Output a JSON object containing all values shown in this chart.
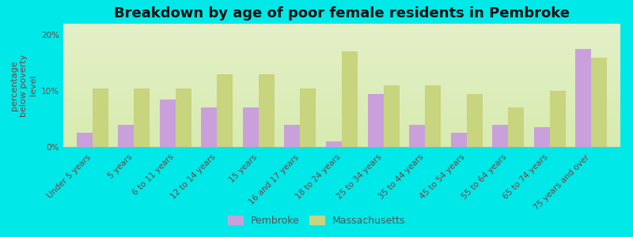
{
  "title": "Breakdown by age of poor female residents in Pembroke",
  "categories": [
    "Under 5 years",
    "5 years",
    "6 to 11 years",
    "12 to 14 years",
    "15 years",
    "16 and 17 years",
    "18 to 24 years",
    "25 to 34 years",
    "35 to 44 years",
    "45 to 54 years",
    "55 to 64 years",
    "65 to 74 years",
    "75 years and over"
  ],
  "pembroke": [
    2.5,
    4.0,
    8.5,
    7.0,
    7.0,
    4.0,
    1.0,
    9.5,
    4.0,
    2.5,
    4.0,
    3.5,
    17.5
  ],
  "massachusetts": [
    10.5,
    10.5,
    10.5,
    13.0,
    13.0,
    10.5,
    17.0,
    11.0,
    11.0,
    9.5,
    7.0,
    10.0,
    16.0
  ],
  "pembroke_color": "#c9a0dc",
  "massachusetts_color": "#c8d47e",
  "background_top": "#e8f0d0",
  "background_bottom": "#f5faf0",
  "outer_background": "#00e8e8",
  "ylabel": "percentage\nbelow poverty\nlevel",
  "ylim": [
    0,
    22
  ],
  "yticks": [
    0,
    10,
    20
  ],
  "ytick_labels": [
    "0%",
    "10%",
    "20%"
  ],
  "bar_width": 0.38,
  "title_fontsize": 13,
  "axis_label_fontsize": 8,
  "tick_fontsize": 7.5,
  "legend_labels": [
    "Pembroke",
    "Massachusetts"
  ],
  "label_color": "#7a4040",
  "tick_label_color": "#7a4040"
}
